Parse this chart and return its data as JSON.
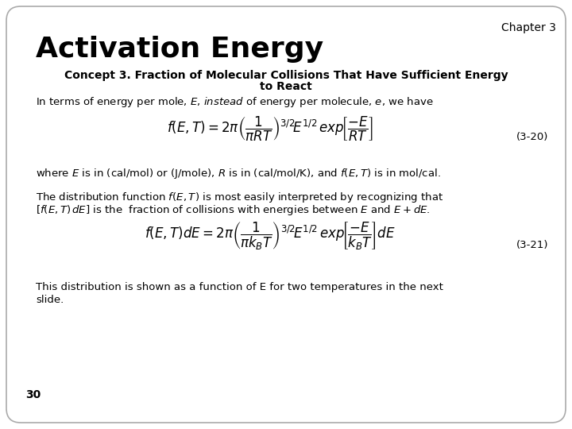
{
  "background_color": "#ffffff",
  "border_color": "#aaaaaa",
  "chapter_text": "Chapter 3",
  "title_text": "Activation Energy",
  "concept_line1": "Concept 3. Fraction of Molecular Collisions That Have Sufficient Energy",
  "concept_line2": "to React",
  "body_text1": "In terms of energy per mole, $E$, $\\it{instead}$ of energy per molecule, $e$, we have",
  "eq1_label": "(3-20)",
  "eq1": "$f\\left(E,T\\right)=2\\pi\\left(\\dfrac{1}{\\pi RT}\\right)^{3/2}\\!E^{1/2}\\,exp\\!\\left[\\dfrac{-E}{RT}\\right]$",
  "body_text2": "where $E$ is in (cal/mol) or (J/mole), $R$ is in (cal/mol/K), and $f(E,T)$ is in mol/cal.",
  "body_text3_line1": "The distribution function $f(E,T)$ is most easily interpreted by recognizing that",
  "body_text3_line2": "[$f(E,T)\\,dE$] is the  fraction of collisions with energies between $E$ and $E + dE$.",
  "eq2_label": "(3-21)",
  "eq2": "$f\\left(E,T\\right)dE=2\\pi\\left(\\dfrac{1}{\\pi k_B T}\\right)^{3/2}\\!E^{1/2}\\,exp\\!\\left[\\dfrac{-E}{k_B T}\\right]dE$",
  "body_text4_line1": "This distribution is shown as a function of E for two temperatures in the next",
  "body_text4_line2": "slide.",
  "page_num": "30",
  "title_fontsize": 26,
  "chapter_fontsize": 10,
  "concept_fontsize": 10,
  "body_fontsize": 9.5,
  "eq_fontsize": 12,
  "label_fontsize": 9.5,
  "page_fontsize": 10
}
